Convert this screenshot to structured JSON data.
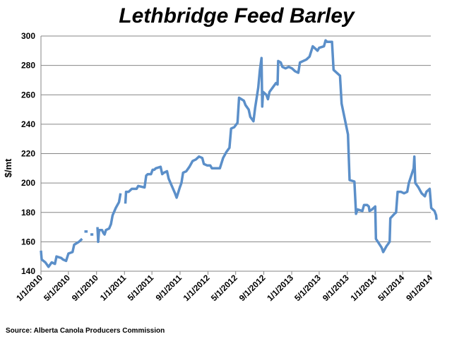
{
  "chart_data": {
    "type": "line",
    "title": "Lethbridge Feed Barley",
    "ylabel": "$/mt",
    "xlabel": "",
    "source": "Source: Alberta Canola Producers Commission",
    "ylim": [
      140,
      300
    ],
    "yticks": [
      140,
      160,
      180,
      200,
      220,
      240,
      260,
      280,
      300
    ],
    "xlim": [
      "2010-01-01",
      "2014-09-01"
    ],
    "xticks": [
      "1/1/2010",
      "5/1/2010",
      "9/1/2010",
      "1/1/2011",
      "5/1/2011",
      "9/1/2011",
      "1/1/2012",
      "5/1/2012",
      "9/1/2012",
      "1/1/2013",
      "5/1/2013",
      "9/1/2013",
      "1/1/2014",
      "5/1/2014",
      "9/1/2014"
    ],
    "grid": true,
    "line_color": "#5b8fc9",
    "series": [
      {
        "segments": [
          [
            [
              "2010-01-01",
              154
            ],
            [
              "2010-01-04",
              148
            ],
            [
              "2010-01-20",
              146
            ],
            [
              "2010-02-03",
              143
            ],
            [
              "2010-02-17",
              146
            ],
            [
              "2010-03-03",
              145
            ],
            [
              "2010-03-10",
              150
            ],
            [
              "2010-03-31",
              149
            ],
            [
              "2010-04-07",
              148
            ],
            [
              "2010-04-21",
              147
            ],
            [
              "2010-05-01",
              152
            ],
            [
              "2010-05-19",
              153
            ],
            [
              "2010-05-26",
              158
            ],
            [
              "2010-06-16",
              160
            ],
            [
              "2010-06-30",
              162
            ]
          ],
          [
            [
              "2010-07-10",
              167
            ],
            [
              "2010-07-24",
              167
            ]
          ],
          [
            [
              "2010-08-05",
              165
            ],
            [
              "2010-08-18",
              165
            ]
          ],
          [
            [
              "2010-09-05",
              170
            ],
            [
              "2010-09-08",
              160
            ],
            [
              "2010-09-12",
              168
            ],
            [
              "2010-09-25",
              168
            ],
            [
              "2010-10-01",
              166
            ],
            [
              "2010-10-06",
              165
            ],
            [
              "2010-10-12",
              168
            ],
            [
              "2010-10-26",
              169
            ],
            [
              "2010-11-03",
              172
            ],
            [
              "2010-11-10",
              178
            ],
            [
              "2010-11-24",
              183
            ],
            [
              "2010-12-08",
              187
            ],
            [
              "2010-12-15",
              193
            ]
          ],
          [
            [
              "2011-01-05",
              186
            ],
            [
              "2011-01-08",
              194
            ],
            [
              "2011-01-19",
              194
            ],
            [
              "2011-02-02",
              196
            ],
            [
              "2011-02-23",
              196
            ],
            [
              "2011-03-02",
              198
            ],
            [
              "2011-03-30",
              197
            ],
            [
              "2011-04-06",
              205
            ],
            [
              "2011-04-13",
              206
            ],
            [
              "2011-04-27",
              206
            ],
            [
              "2011-05-04",
              209
            ],
            [
              "2011-05-11",
              209
            ],
            [
              "2011-05-18",
              210
            ],
            [
              "2011-06-08",
              211
            ],
            [
              "2011-06-15",
              206
            ],
            [
              "2011-06-22",
              207
            ],
            [
              "2011-07-06",
              208
            ],
            [
              "2011-07-13",
              203
            ],
            [
              "2011-07-27",
              198
            ],
            [
              "2011-08-10",
              193
            ],
            [
              "2011-08-17",
              190
            ],
            [
              "2011-08-31",
              197
            ],
            [
              "2011-09-07",
              200
            ],
            [
              "2011-09-14",
              207
            ],
            [
              "2011-09-28",
              208
            ],
            [
              "2011-10-12",
              211
            ],
            [
              "2011-10-26",
              215
            ],
            [
              "2011-11-09",
              216
            ],
            [
              "2011-11-23",
              218
            ],
            [
              "2011-12-07",
              217
            ],
            [
              "2011-12-14",
              213
            ],
            [
              "2011-12-28",
              212
            ],
            [
              "2012-01-11",
              212
            ],
            [
              "2012-01-18",
              210
            ],
            [
              "2012-02-01",
              210
            ],
            [
              "2012-02-22",
              210
            ],
            [
              "2012-03-07",
              217
            ],
            [
              "2012-03-21",
              221
            ],
            [
              "2012-04-04",
              224
            ],
            [
              "2012-04-11",
              237
            ],
            [
              "2012-04-25",
              238
            ],
            [
              "2012-05-09",
              241
            ],
            [
              "2012-05-16",
              258
            ],
            [
              "2012-06-06",
              256
            ],
            [
              "2012-06-13",
              253
            ],
            [
              "2012-06-27",
              250
            ],
            [
              "2012-07-04",
              245
            ],
            [
              "2012-07-18",
              242
            ],
            [
              "2012-07-25",
              251
            ],
            [
              "2012-08-08",
              265
            ],
            [
              "2012-08-15",
              277
            ],
            [
              "2012-08-22",
              285
            ],
            [
              "2012-08-25",
              252
            ],
            [
              "2012-08-29",
              262
            ],
            [
              "2012-09-12",
              260
            ],
            [
              "2012-09-19",
              257
            ],
            [
              "2012-09-26",
              262
            ],
            [
              "2012-10-10",
              265
            ],
            [
              "2012-10-24",
              268
            ],
            [
              "2012-10-31",
              267
            ],
            [
              "2012-11-03",
              283
            ],
            [
              "2012-11-14",
              282
            ],
            [
              "2012-11-21",
              279
            ],
            [
              "2012-12-05",
              278
            ],
            [
              "2012-12-19",
              279
            ],
            [
              "2013-01-02",
              278
            ],
            [
              "2013-01-16",
              276
            ],
            [
              "2013-01-30",
              275
            ],
            [
              "2013-02-06",
              282
            ],
            [
              "2013-02-20",
              283
            ],
            [
              "2013-03-06",
              284
            ],
            [
              "2013-03-20",
              286
            ],
            [
              "2013-04-03",
              293
            ],
            [
              "2013-04-17",
              291
            ],
            [
              "2013-04-24",
              290
            ],
            [
              "2013-05-01",
              292
            ],
            [
              "2013-05-22",
              293
            ],
            [
              "2013-05-29",
              297
            ],
            [
              "2013-06-05",
              296
            ],
            [
              "2013-06-26",
              296
            ],
            [
              "2013-07-03",
              277
            ],
            [
              "2013-07-31",
              273
            ],
            [
              "2013-08-07",
              254
            ],
            [
              "2013-09-04",
              233
            ],
            [
              "2013-09-11",
              202
            ],
            [
              "2013-10-02",
              201
            ],
            [
              "2013-10-09",
              179
            ],
            [
              "2013-10-16",
              182
            ],
            [
              "2013-11-06",
              181
            ],
            [
              "2013-11-13",
              185
            ],
            [
              "2013-11-27",
              185
            ],
            [
              "2013-12-04",
              184
            ],
            [
              "2013-12-07",
              181
            ],
            [
              "2013-12-18",
              182
            ],
            [
              "2014-01-01",
              184
            ],
            [
              "2014-01-04",
              162
            ],
            [
              "2014-01-29",
              156
            ],
            [
              "2014-02-05",
              153
            ],
            [
              "2014-02-19",
              157
            ],
            [
              "2014-03-05",
              160
            ],
            [
              "2014-03-08",
              176
            ],
            [
              "2014-03-26",
              179
            ],
            [
              "2014-04-02",
              180
            ],
            [
              "2014-04-09",
              194
            ],
            [
              "2014-04-23",
              194
            ],
            [
              "2014-05-07",
              193
            ],
            [
              "2014-05-21",
              194
            ],
            [
              "2014-05-28",
              200
            ],
            [
              "2014-06-18",
              210
            ],
            [
              "2014-06-21",
              218
            ],
            [
              "2014-06-25",
              200
            ],
            [
              "2014-07-09",
              197
            ],
            [
              "2014-07-23",
              193
            ],
            [
              "2014-08-06",
              191
            ],
            [
              "2014-08-13",
              194
            ],
            [
              "2014-08-27",
              196
            ],
            [
              "2014-09-03",
              183
            ],
            [
              "2014-09-17",
              181
            ],
            [
              "2014-09-24",
              178
            ],
            [
              "2014-09-26",
              175
            ]
          ]
        ]
      }
    ]
  }
}
